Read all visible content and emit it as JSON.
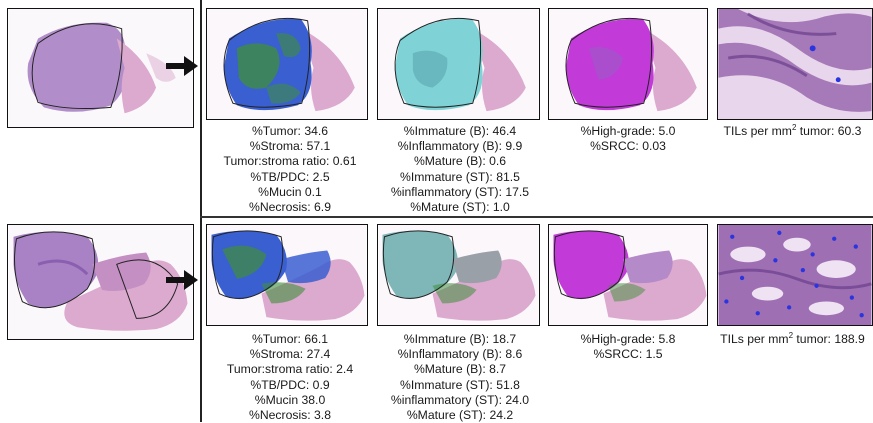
{
  "rows": [
    {
      "col1": [
        "%Tumor: 34.6",
        "%Stroma: 57.1",
        "Tumor:stroma ratio: 0.61",
        "%TB/PDC: 2.5",
        "%Mucin 0.1",
        "%Necrosis: 6.9"
      ],
      "col2": [
        "%Immature (B): 46.4",
        "%Inflammatory (B): 9.9",
        "%Mature (B): 0.6",
        "%Immature (ST): 81.5",
        "%inflammatory (ST): 17.5",
        "%Mature (ST): 1.0"
      ],
      "col3": [
        "%High-grade: 5.0",
        "%SRCC: 0.03"
      ],
      "tils_prefix": "TILs per mm",
      "tils_sup": "2",
      "tils_suffix": " tumor: 60.3"
    },
    {
      "col1": [
        "%Tumor: 66.1",
        "%Stroma: 27.4",
        "Tumor:stroma ratio: 2.4",
        "%TB/PDC: 0.9",
        "%Mucin 38.0",
        "%Necrosis: 3.8"
      ],
      "col2": [
        "%Immature (B): 18.7",
        "%Inflammatory (B): 8.6",
        "%Mature (B): 8.7",
        "%Immature (ST): 51.8",
        "%inflammatory (ST): 24.0",
        "%Mature (ST): 24.2"
      ],
      "col3": [
        "%High-grade: 5.8",
        "%SRCC: 1.5"
      ],
      "tils_prefix": "TILs per mm",
      "tils_sup": "2",
      "tils_suffix": " tumor: 188.9"
    }
  ],
  "colors": {
    "he_tissue": "#a882c4",
    "he_pink": "#dca9cf",
    "tumor_blue": "#3a5fd0",
    "stroma_green": "#3f8f3a",
    "stroma_cyan": "#7fd3d6",
    "highgrade_magenta": "#c23ad8",
    "til_dot": "#2a35e0"
  }
}
